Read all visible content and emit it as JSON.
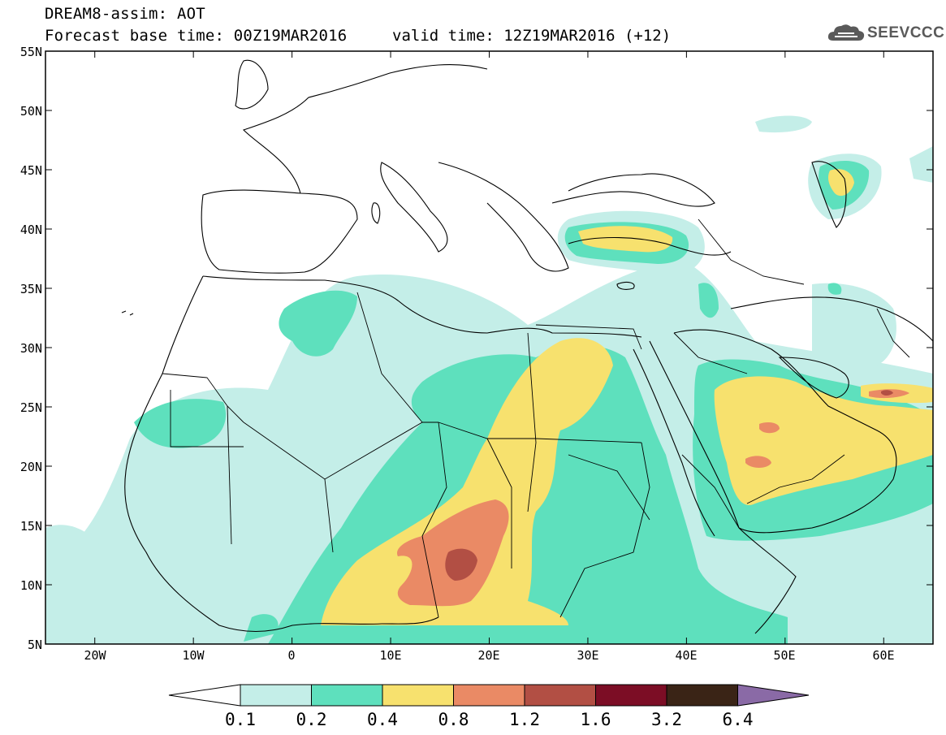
{
  "header": {
    "title_line1": "DREAM8-assim: AOT",
    "title_line2": "Forecast base time: 00Z19MAR2016",
    "valid_time": "valid time: 12Z19MAR2016 (+12)",
    "logo_text": "SEEVCCC"
  },
  "map": {
    "lon_labels": [
      "20W",
      "10W",
      "0",
      "10E",
      "20E",
      "30E",
      "40E",
      "50E",
      "60E"
    ],
    "lat_labels": [
      "55N",
      "50N",
      "45N",
      "40N",
      "35N",
      "30N",
      "25N",
      "20N",
      "15N",
      "10N",
      "5N"
    ],
    "extent": {
      "lon_min": -25,
      "lon_max": 65,
      "lat_min": 5,
      "lat_max": 55
    }
  },
  "colorbar": {
    "labels": [
      "0.1",
      "0.2",
      "0.4",
      "0.8",
      "1.2",
      "1.6",
      "3.2",
      "6.4"
    ],
    "colors": [
      "#ffffff",
      "#c4eee8",
      "#5ee0bd",
      "#f7e16e",
      "#ea8a65",
      "#b24f44",
      "#7c0d25",
      "#3a2416",
      "#8a6aa6"
    ]
  },
  "palette": {
    "c1": "#c4eee8",
    "c2": "#5ee0bd",
    "c3": "#f7e16e",
    "c4": "#ea8a65",
    "c5": "#b24f44"
  }
}
